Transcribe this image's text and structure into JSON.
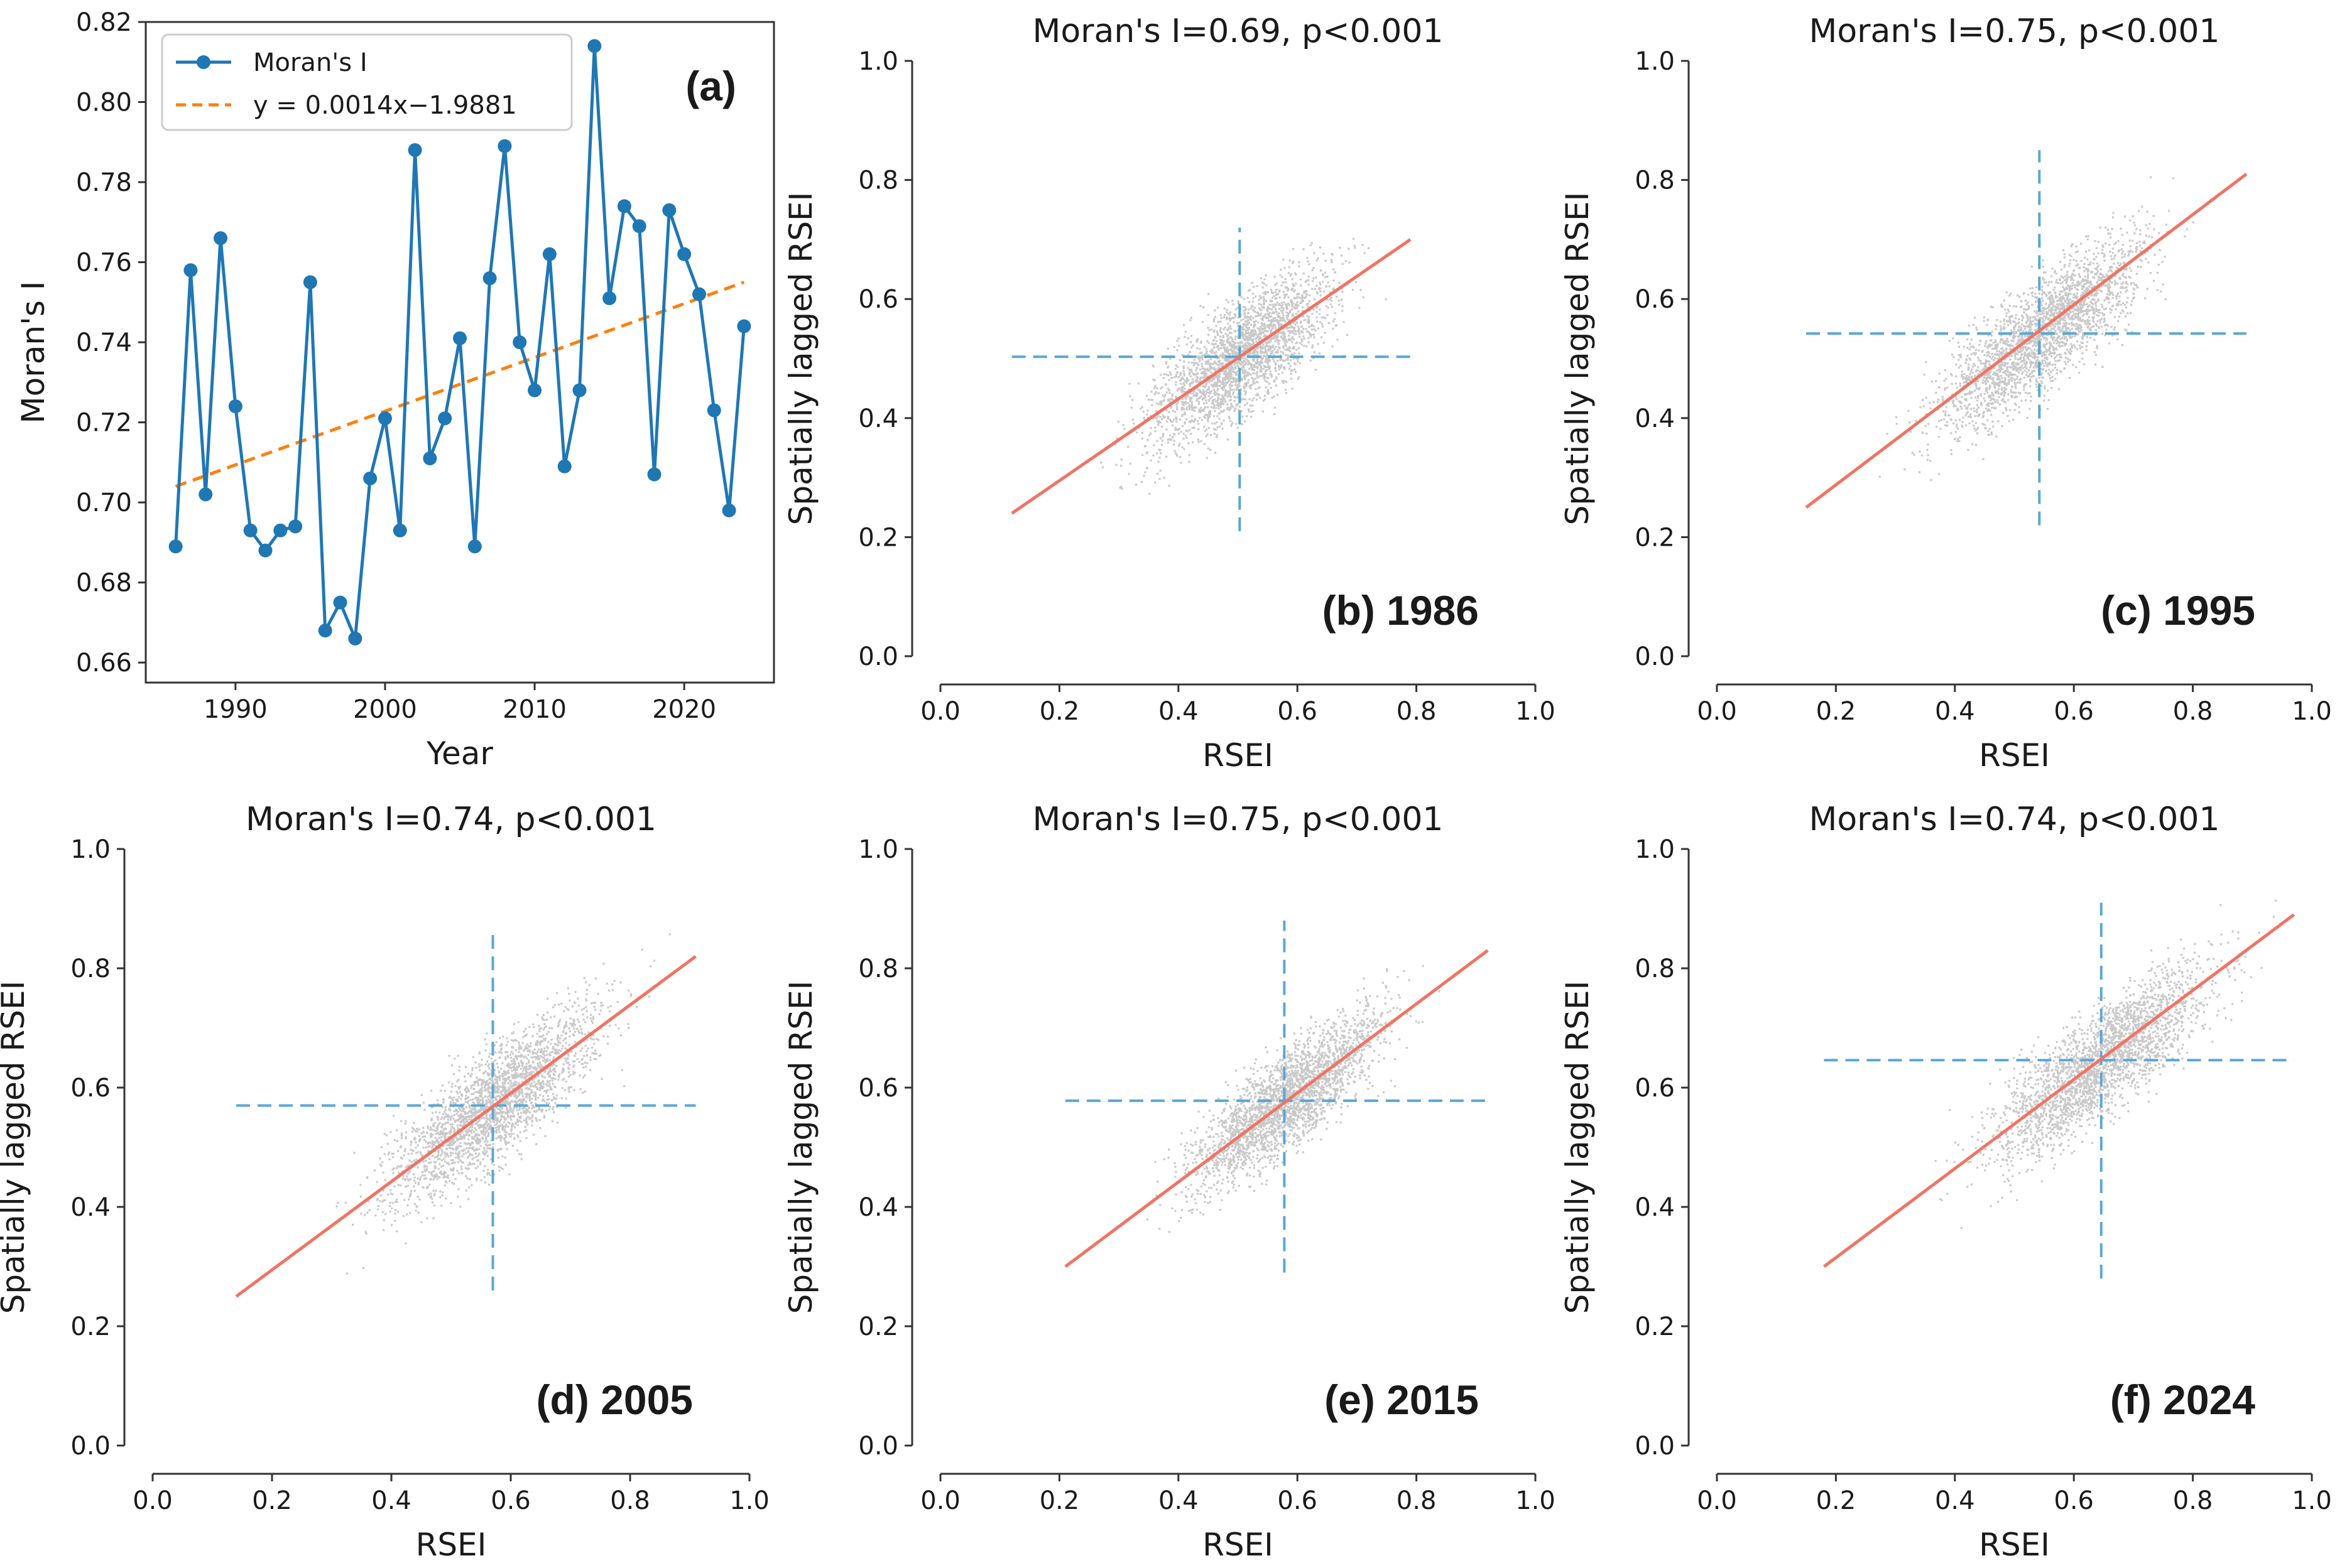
{
  "chart_data": [
    {
      "id": "a",
      "type": "line",
      "panel_label": "(a)",
      "title": "",
      "xlabel": "Year",
      "ylabel": "Moran's I",
      "xlim": [
        1984,
        2026
      ],
      "ylim": [
        0.655,
        0.82
      ],
      "xticks": [
        1990,
        2000,
        2010,
        2020
      ],
      "yticks": [
        0.66,
        0.68,
        0.7,
        0.72,
        0.74,
        0.76,
        0.78,
        0.8,
        0.82
      ],
      "ytick_labels": [
        "0.66",
        "0.68",
        "0.70",
        "0.72",
        "0.74",
        "0.76",
        "0.78",
        "0.80",
        "0.82"
      ],
      "legend_position": "top-left",
      "colors": {
        "series": "#1f77b4",
        "trend": "#ff7f0e"
      },
      "series": [
        {
          "name": "Moran's I",
          "x": [
            1986,
            1987,
            1988,
            1989,
            1990,
            1991,
            1992,
            1993,
            1994,
            1995,
            1996,
            1997,
            1998,
            1999,
            2000,
            2001,
            2002,
            2003,
            2004,
            2005,
            2006,
            2007,
            2008,
            2009,
            2010,
            2011,
            2012,
            2013,
            2014,
            2015,
            2016,
            2017,
            2018,
            2019,
            2020,
            2021,
            2022,
            2023,
            2024
          ],
          "values": [
            0.689,
            0.758,
            0.702,
            0.766,
            0.724,
            0.693,
            0.688,
            0.693,
            0.694,
            0.755,
            0.668,
            0.675,
            0.666,
            0.706,
            0.721,
            0.693,
            0.788,
            0.711,
            0.721,
            0.741,
            0.689,
            0.756,
            0.789,
            0.74,
            0.728,
            0.762,
            0.709,
            0.728,
            0.814,
            0.751,
            0.774,
            0.769,
            0.707,
            0.773,
            0.762,
            0.752,
            0.723,
            0.698,
            0.744
          ]
        },
        {
          "name": "y = 0.0014x−1.9881",
          "type": "trend",
          "slope": 0.0014,
          "intercept": -1.9881,
          "x_range": [
            1986,
            2024
          ],
          "y_range": [
            0.704,
            0.755
          ]
        }
      ]
    },
    {
      "id": "b",
      "type": "scatter",
      "panel_label": "(b) 1986",
      "title": "Moran's I=0.69, p<0.001",
      "xlabel": "RSEI",
      "ylabel": "Spatially lagged RSEI",
      "xlim": [
        0,
        1
      ],
      "ylim": [
        0,
        1
      ],
      "ticks": [
        "0.0",
        "0.2",
        "0.4",
        "0.6",
        "0.8",
        "1.0"
      ],
      "mean": 0.503,
      "fit_x": [
        0.12,
        0.79
      ],
      "fit_y": [
        0.24,
        0.7
      ],
      "x_spread": [
        0.12,
        0.78
      ],
      "vline_y": [
        0.21,
        0.72
      ],
      "hline_x": [
        0.12,
        0.79
      ],
      "slope": 0.69,
      "noise": 0.045
    },
    {
      "id": "c",
      "type": "scatter",
      "panel_label": "(c) 1995",
      "title": "Moran's I=0.75, p<0.001",
      "xlabel": "RSEI",
      "ylabel": "Spatially lagged RSEI",
      "xlim": [
        0,
        1
      ],
      "ylim": [
        0,
        1
      ],
      "ticks": [
        "0.0",
        "0.2",
        "0.4",
        "0.6",
        "0.8",
        "1.0"
      ],
      "mean": 0.542,
      "fit_x": [
        0.15,
        0.89
      ],
      "fit_y": [
        0.25,
        0.81
      ],
      "x_spread": [
        0.15,
        0.88
      ],
      "vline_y": [
        0.22,
        0.85
      ],
      "hline_x": [
        0.15,
        0.89
      ],
      "slope": 0.75,
      "noise": 0.045
    },
    {
      "id": "d",
      "type": "scatter",
      "panel_label": "(d) 2005",
      "title": "Moran's I=0.74, p<0.001",
      "xlabel": "RSEI",
      "ylabel": "Spatially lagged RSEI",
      "xlim": [
        0,
        1
      ],
      "ylim": [
        0,
        1
      ],
      "ticks": [
        "0.0",
        "0.2",
        "0.4",
        "0.6",
        "0.8",
        "1.0"
      ],
      "mean": 0.57,
      "fit_x": [
        0.14,
        0.91
      ],
      "fit_y": [
        0.25,
        0.82
      ],
      "x_spread": [
        0.14,
        0.9
      ],
      "vline_y": [
        0.26,
        0.86
      ],
      "hline_x": [
        0.14,
        0.91
      ],
      "slope": 0.74,
      "noise": 0.045
    },
    {
      "id": "e",
      "type": "scatter",
      "panel_label": "(e) 2015",
      "title": "Moran's I=0.75, p<0.001",
      "xlabel": "RSEI",
      "ylabel": "Spatially lagged RSEI",
      "xlim": [
        0,
        1
      ],
      "ylim": [
        0,
        1
      ],
      "ticks": [
        "0.0",
        "0.2",
        "0.4",
        "0.6",
        "0.8",
        "1.0"
      ],
      "mean": 0.578,
      "fit_x": [
        0.21,
        0.92
      ],
      "fit_y": [
        0.3,
        0.83
      ],
      "x_spread": [
        0.21,
        0.91
      ],
      "vline_y": [
        0.29,
        0.88
      ],
      "hline_x": [
        0.21,
        0.92
      ],
      "slope": 0.75,
      "noise": 0.04
    },
    {
      "id": "f",
      "type": "scatter",
      "panel_label": "(f) 2024",
      "title": "Moran's I=0.74, p<0.001",
      "xlabel": "RSEI",
      "ylabel": "Spatially lagged RSEI",
      "xlim": [
        0,
        1
      ],
      "ylim": [
        0,
        1
      ],
      "ticks": [
        "0.0",
        "0.2",
        "0.4",
        "0.6",
        "0.8",
        "1.0"
      ],
      "mean": 0.646,
      "fit_x": [
        0.18,
        0.97
      ],
      "fit_y": [
        0.3,
        0.89
      ],
      "x_spread": [
        0.18,
        0.96
      ],
      "vline_y": [
        0.28,
        0.91
      ],
      "hline_x": [
        0.18,
        0.97
      ],
      "slope": 0.74,
      "noise": 0.045
    }
  ],
  "colors": {
    "points": "#bfbfbf",
    "fit_line": "#f07464",
    "mean_lines": "#5aa7d6",
    "axis": "#333333"
  }
}
